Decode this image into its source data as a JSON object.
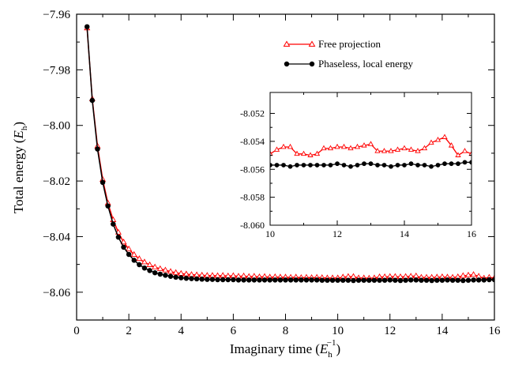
{
  "chart_data": {
    "type": "line",
    "xlabel": "Imaginary time",
    "xlabel_unit": {
      "open": "(",
      "E": "E",
      "sub": "h",
      "sup": "−1",
      "close": ")"
    },
    "ylabel": "Total energy",
    "ylabel_unit": {
      "open": "(",
      "E": "E",
      "sub": "h",
      "close": ")"
    },
    "xlim": [
      0,
      16
    ],
    "ylim": [
      -8.07,
      -7.96
    ],
    "x_ticks": [
      0,
      2,
      4,
      6,
      8,
      10,
      12,
      14,
      16
    ],
    "x_tick_labels": [
      "0",
      "2",
      "4",
      "6",
      "8",
      "10",
      "12",
      "14",
      "16"
    ],
    "y_ticks": [
      -8.06,
      -8.04,
      -8.02,
      -8.0,
      -7.98,
      -7.96
    ],
    "y_tick_labels": [
      "−8.06",
      "−8.04",
      "−8.02",
      "−8.00",
      "−7.98",
      "−7.96"
    ],
    "legend_position": "top-right",
    "grid": false,
    "series": [
      {
        "name": "Free projection",
        "color": "#ff0000",
        "marker": "open-triangle",
        "x": [
          0.4,
          0.6,
          0.8,
          1.0,
          1.2,
          1.4,
          1.6,
          1.8,
          2.0,
          2.2,
          2.4,
          2.6,
          2.8,
          3.0,
          3.2,
          3.4,
          3.6,
          3.8,
          4.0,
          4.2,
          4.4,
          4.6,
          4.8,
          5.0,
          5.2,
          5.4,
          5.6,
          5.8,
          6.0,
          6.2,
          6.4,
          6.6,
          6.8,
          7.0,
          7.2,
          7.4,
          7.6,
          7.8,
          8.0,
          8.2,
          8.4,
          8.6,
          8.8,
          9.0,
          9.2,
          9.4,
          9.6,
          9.8,
          10.0,
          10.2,
          10.4,
          10.6,
          10.8,
          11.0,
          11.2,
          11.4,
          11.6,
          11.8,
          12.0,
          12.2,
          12.4,
          12.6,
          12.8,
          13.0,
          13.2,
          13.4,
          13.6,
          13.8,
          14.0,
          14.2,
          14.4,
          14.6,
          14.8,
          15.0,
          15.2,
          15.4,
          15.6,
          15.8,
          16.0
        ],
        "y": [
          -7.965,
          -7.9905,
          -8.0075,
          -8.0195,
          -8.028,
          -8.034,
          -8.0385,
          -8.042,
          -8.0445,
          -8.0465,
          -8.048,
          -8.0492,
          -8.0502,
          -8.051,
          -8.0516,
          -8.0521,
          -8.0526,
          -8.053,
          -8.0533,
          -8.0535,
          -8.0537,
          -8.0538,
          -8.0539,
          -8.054,
          -8.054,
          -8.0541,
          -8.054,
          -8.0542,
          -8.0541,
          -8.0543,
          -8.0542,
          -8.0544,
          -8.0543,
          -8.0545,
          -8.0544,
          -8.0546,
          -8.0545,
          -8.0546,
          -8.0546,
          -8.0547,
          -8.0546,
          -8.0548,
          -8.0547,
          -8.0548,
          -8.0547,
          -8.0548,
          -8.0549,
          -8.0549,
          -8.0549,
          -8.0546,
          -8.0544,
          -8.0544,
          -8.0549,
          -8.0549,
          -8.055,
          -8.0549,
          -8.0545,
          -8.0545,
          -8.0544,
          -8.0544,
          -8.0545,
          -8.0544,
          -8.0543,
          -8.0542,
          -8.0547,
          -8.0547,
          -8.0547,
          -8.0546,
          -8.0545,
          -8.0546,
          -8.0547,
          -8.0545,
          -8.0541,
          -8.0539,
          -8.0537,
          -8.0543,
          -8.055,
          -8.0547,
          -8.0549
        ]
      },
      {
        "name": "Phaseless, local energy",
        "color": "#000000",
        "marker": "filled-circle",
        "x": [
          0.4,
          0.6,
          0.8,
          1.0,
          1.2,
          1.4,
          1.6,
          1.8,
          2.0,
          2.2,
          2.4,
          2.6,
          2.8,
          3.0,
          3.2,
          3.4,
          3.6,
          3.8,
          4.0,
          4.2,
          4.4,
          4.6,
          4.8,
          5.0,
          5.2,
          5.4,
          5.6,
          5.8,
          6.0,
          6.2,
          6.4,
          6.6,
          6.8,
          7.0,
          7.2,
          7.4,
          7.6,
          7.8,
          8.0,
          8.2,
          8.4,
          8.6,
          8.8,
          9.0,
          9.2,
          9.4,
          9.6,
          9.8,
          10.0,
          10.2,
          10.4,
          10.6,
          10.8,
          11.0,
          11.2,
          11.4,
          11.6,
          11.8,
          12.0,
          12.2,
          12.4,
          12.6,
          12.8,
          13.0,
          13.2,
          13.4,
          13.6,
          13.8,
          14.0,
          14.2,
          14.4,
          14.6,
          14.8,
          15.0,
          15.2,
          15.4,
          15.6,
          15.8,
          16.0
        ],
        "y": [
          -7.9645,
          -7.991,
          -8.0085,
          -8.0205,
          -8.029,
          -8.0355,
          -8.0402,
          -8.0438,
          -8.0464,
          -8.0485,
          -8.0501,
          -8.0513,
          -8.0522,
          -8.053,
          -8.0535,
          -8.0539,
          -8.0543,
          -8.0546,
          -8.0548,
          -8.055,
          -8.0551,
          -8.0552,
          -8.0553,
          -8.0554,
          -8.0554,
          -8.0555,
          -8.0555,
          -8.0555,
          -8.0555,
          -8.0556,
          -8.0556,
          -8.0556,
          -8.0556,
          -8.0556,
          -8.0556,
          -8.0556,
          -8.0556,
          -8.0556,
          -8.0556,
          -8.0556,
          -8.0556,
          -8.0556,
          -8.0556,
          -8.0556,
          -8.0556,
          -8.0557,
          -8.0557,
          -8.0557,
          -8.0557,
          -8.0557,
          -8.0557,
          -8.0558,
          -8.0557,
          -8.0557,
          -8.0557,
          -8.0557,
          -8.0557,
          -8.0557,
          -8.0556,
          -8.0557,
          -8.0558,
          -8.0557,
          -8.0556,
          -8.0556,
          -8.0557,
          -8.0557,
          -8.0558,
          -8.0557,
          -8.0557,
          -8.0556,
          -8.0557,
          -8.0557,
          -8.0558,
          -8.0557,
          -8.0556,
          -8.0556,
          -8.0556,
          -8.0555,
          -8.0555
        ]
      }
    ],
    "inset": {
      "type": "line",
      "xlim": [
        10,
        16
      ],
      "ylim": [
        -8.06,
        -8.0505
      ],
      "x_ticks": [
        10,
        12,
        14,
        16
      ],
      "x_tick_labels": [
        "10",
        "12",
        "14",
        "16"
      ],
      "y_ticks": [
        -8.06,
        -8.058,
        -8.056,
        -8.054,
        -8.052
      ],
      "y_tick_labels": [
        "-8.060",
        "-8.058",
        "-8.056",
        "-8.054",
        "-8.052"
      ],
      "series": [
        {
          "name": "Free projection",
          "color": "#ff0000",
          "marker": "open-triangle",
          "x": [
            10.0,
            10.2,
            10.4,
            10.6,
            10.8,
            11.0,
            11.2,
            11.4,
            11.6,
            11.8,
            12.0,
            12.2,
            12.4,
            12.6,
            12.8,
            13.0,
            13.2,
            13.4,
            13.6,
            13.8,
            14.0,
            14.2,
            14.4,
            14.6,
            14.8,
            15.0,
            15.2,
            15.4,
            15.6,
            15.8,
            16.0
          ],
          "y": [
            -8.0549,
            -8.0546,
            -8.0544,
            -8.0544,
            -8.0549,
            -8.0549,
            -8.055,
            -8.0549,
            -8.0545,
            -8.0545,
            -8.0544,
            -8.0544,
            -8.0545,
            -8.0544,
            -8.0543,
            -8.0542,
            -8.0547,
            -8.0547,
            -8.0547,
            -8.0546,
            -8.0545,
            -8.0546,
            -8.0547,
            -8.0545,
            -8.0541,
            -8.0539,
            -8.0537,
            -8.0543,
            -8.055,
            -8.0547,
            -8.0549
          ]
        },
        {
          "name": "Phaseless, local energy",
          "color": "#000000",
          "marker": "filled-circle",
          "x": [
            10.0,
            10.2,
            10.4,
            10.6,
            10.8,
            11.0,
            11.2,
            11.4,
            11.6,
            11.8,
            12.0,
            12.2,
            12.4,
            12.6,
            12.8,
            13.0,
            13.2,
            13.4,
            13.6,
            13.8,
            14.0,
            14.2,
            14.4,
            14.6,
            14.8,
            15.0,
            15.2,
            15.4,
            15.6,
            15.8,
            16.0
          ],
          "y": [
            -8.0557,
            -8.0557,
            -8.0557,
            -8.0558,
            -8.0557,
            -8.0557,
            -8.0557,
            -8.0557,
            -8.0557,
            -8.0557,
            -8.0556,
            -8.0557,
            -8.0558,
            -8.0557,
            -8.0556,
            -8.0556,
            -8.0557,
            -8.0557,
            -8.0558,
            -8.0557,
            -8.0557,
            -8.0556,
            -8.0557,
            -8.0557,
            -8.0558,
            -8.0557,
            -8.0556,
            -8.0556,
            -8.0556,
            -8.0555,
            -8.0555
          ]
        }
      ]
    }
  }
}
